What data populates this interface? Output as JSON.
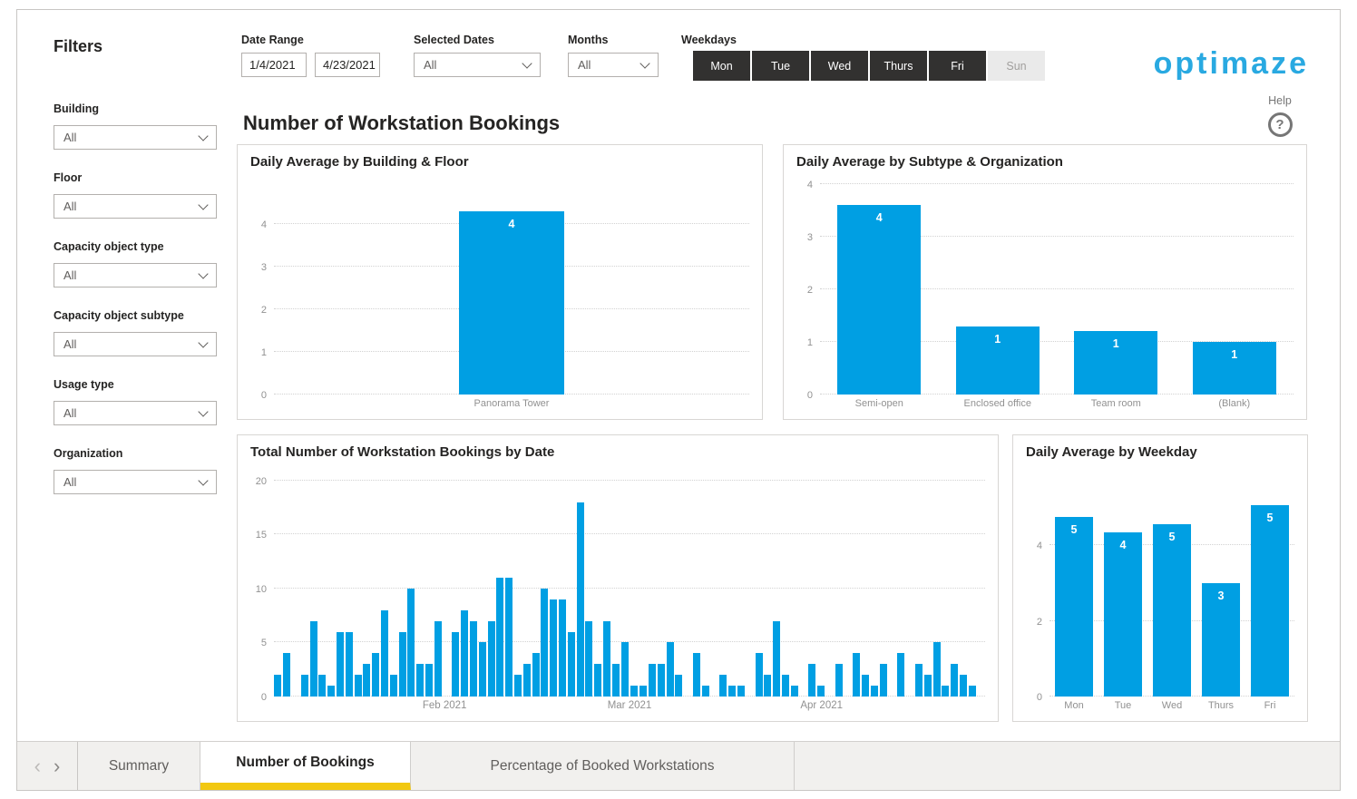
{
  "brand": {
    "logo_text": "optimaze"
  },
  "help": {
    "label": "Help",
    "icon": "?"
  },
  "page_title": "Number of Workstation Bookings",
  "colors": {
    "accent_bar": "#009fe3",
    "logo_blue": "#29a9e1",
    "active_tab_underline": "#f2c811",
    "weekday_selected_bg": "#323130",
    "weekday_unselected_bg": "#eaeaea"
  },
  "icons": {
    "chevron_left": "‹",
    "chevron_right": "›",
    "chevron_down": "v",
    "help_question": "?"
  },
  "filters_panel": {
    "title": "Filters",
    "items": [
      {
        "label": "Building",
        "value": "All"
      },
      {
        "label": "Floor",
        "value": "All"
      },
      {
        "label": "Capacity object type",
        "value": "All"
      },
      {
        "label": "Capacity object subtype",
        "value": "All"
      },
      {
        "label": "Usage type",
        "value": "All"
      },
      {
        "label": "Organization",
        "value": "All"
      }
    ]
  },
  "top_controls": {
    "date_range": {
      "label": "Date Range",
      "start": "1/4/2021",
      "end": "4/23/2021"
    },
    "selected_dates": {
      "label": "Selected Dates",
      "value": "All"
    },
    "months": {
      "label": "Months",
      "value": "All"
    },
    "weekdays": {
      "label": "Weekdays",
      "buttons": [
        {
          "label": "Mon",
          "selected": true
        },
        {
          "label": "Tue",
          "selected": true
        },
        {
          "label": "Wed",
          "selected": true
        },
        {
          "label": "Thurs",
          "selected": true
        },
        {
          "label": "Fri",
          "selected": true
        },
        {
          "label": "Sun",
          "selected": false
        }
      ]
    }
  },
  "chart_data": [
    {
      "type": "bar",
      "title": "Daily Average by Building & Floor",
      "categories": [
        "Panorama Tower"
      ],
      "values": [
        4.3
      ],
      "data_labels": [
        "4"
      ],
      "ylim": [
        0,
        4.35
      ],
      "yticks": [
        0,
        1,
        2,
        3,
        4
      ],
      "grid": "dotted",
      "legend": "none"
    },
    {
      "type": "bar",
      "title": "Daily Average by Subtype & Organization",
      "categories": [
        "Semi-open",
        "Enclosed office",
        "Team room",
        "(Blank)"
      ],
      "values": [
        3.6,
        1.3,
        1.2,
        1.0
      ],
      "data_labels": [
        "4",
        "1",
        "1",
        "1"
      ],
      "ylim": [
        0,
        4
      ],
      "yticks": [
        0,
        1,
        2,
        3,
        4
      ],
      "grid": "dotted",
      "legend": "none"
    },
    {
      "type": "bar",
      "title": "Total Number of Workstation Bookings by Date",
      "x_unit": "weekday dates, Mon-Fri clusters",
      "weeks": [
        {
          "week_of": "Jan 4",
          "values": [
            2,
            4,
            0,
            2,
            7
          ]
        },
        {
          "week_of": "Jan 11",
          "values": [
            2,
            1,
            6,
            6,
            2
          ]
        },
        {
          "week_of": "Jan 18",
          "values": [
            3,
            4,
            8,
            2,
            6
          ]
        },
        {
          "week_of": "Jan 25",
          "values": [
            10,
            3,
            3,
            7,
            0
          ]
        },
        {
          "week_of": "Feb 1",
          "values": [
            6,
            8,
            7,
            5,
            7
          ]
        },
        {
          "week_of": "Feb 8",
          "values": [
            11,
            11,
            2,
            3,
            4
          ]
        },
        {
          "week_of": "Feb 15",
          "values": [
            10,
            9,
            9,
            6,
            18
          ]
        },
        {
          "week_of": "Feb 22",
          "values": [
            7,
            3,
            7,
            3,
            5
          ]
        },
        {
          "week_of": "Mar 1",
          "values": [
            1,
            1,
            3,
            3,
            5
          ]
        },
        {
          "week_of": "Mar 8",
          "values": [
            2,
            0,
            4,
            1,
            0
          ]
        },
        {
          "week_of": "Mar 15",
          "values": [
            2,
            1,
            1,
            0,
            4
          ]
        },
        {
          "week_of": "Mar 22",
          "values": [
            2,
            7,
            2,
            1,
            0
          ]
        },
        {
          "week_of": "Mar 29",
          "values": [
            3,
            1,
            0,
            3,
            0
          ]
        },
        {
          "week_of": "Apr 5",
          "values": [
            4,
            2,
            1,
            3,
            0
          ]
        },
        {
          "week_of": "Apr 12",
          "values": [
            4,
            0,
            3,
            2,
            5
          ]
        },
        {
          "week_of": "Apr 19",
          "values": [
            1,
            3,
            2,
            1,
            0
          ]
        }
      ],
      "xticks": [
        {
          "label": "Feb 2021",
          "pos_pct": 24
        },
        {
          "label": "Mar 2021",
          "pos_pct": 50
        },
        {
          "label": "Apr 2021",
          "pos_pct": 77
        }
      ],
      "ylim": [
        0,
        20
      ],
      "yticks": [
        0,
        5,
        10,
        15,
        20
      ],
      "grid": "dotted",
      "legend": "none"
    },
    {
      "type": "bar",
      "title": "Daily Average by Weekday",
      "categories": [
        "Mon",
        "Tue",
        "Wed",
        "Thurs",
        "Fri"
      ],
      "values": [
        4.75,
        4.35,
        4.55,
        3.0,
        5.05
      ],
      "data_labels": [
        "5",
        "4",
        "5",
        "3",
        "5"
      ],
      "ylim": [
        0,
        5.3
      ],
      "yticks": [
        0,
        2,
        4
      ],
      "grid": "dotted",
      "legend": "none"
    }
  ],
  "tab_bar": {
    "tabs": [
      {
        "label": "Summary",
        "active": false
      },
      {
        "label": "Number of Bookings",
        "active": true
      },
      {
        "label": "Percentage of Booked Workstations",
        "active": false
      }
    ]
  }
}
